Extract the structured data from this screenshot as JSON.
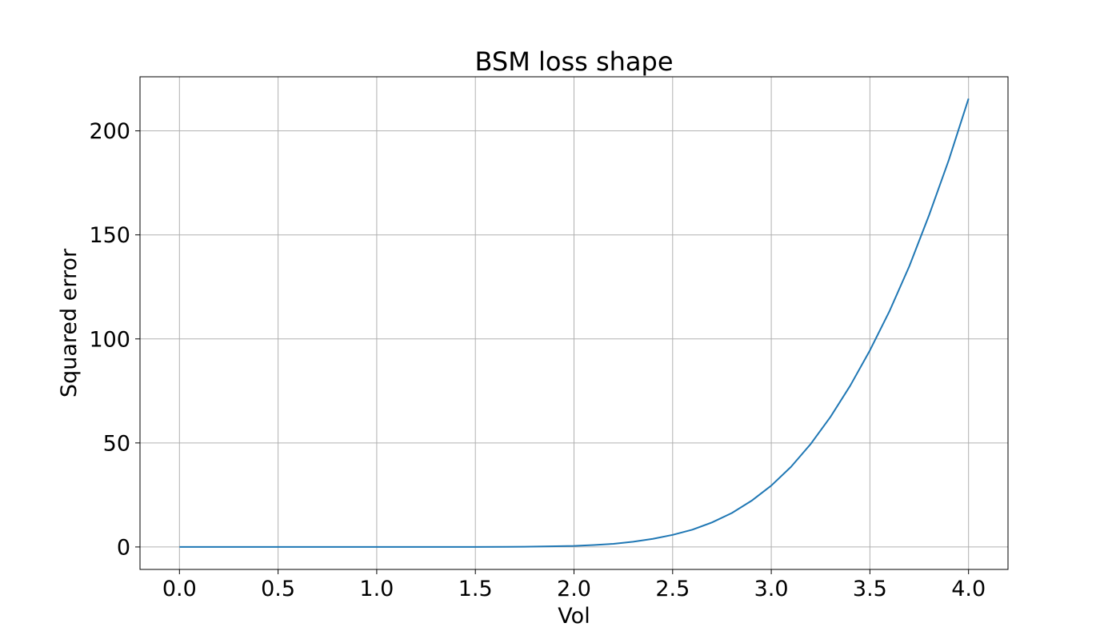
{
  "chart_data": {
    "type": "line",
    "title": "BSM loss shape",
    "xlabel": "Vol",
    "ylabel": "Squared error",
    "xlim": [
      -0.2,
      4.2
    ],
    "ylim": [
      -10.8,
      226.0
    ],
    "grid": true,
    "x_ticks": [
      0.0,
      0.5,
      1.0,
      1.5,
      2.0,
      2.5,
      3.0,
      3.5,
      4.0
    ],
    "x_tick_labels": [
      "0.0",
      "0.5",
      "1.0",
      "1.5",
      "2.0",
      "2.5",
      "3.0",
      "3.5",
      "4.0"
    ],
    "y_ticks": [
      0,
      50,
      100,
      150,
      200
    ],
    "y_tick_labels": [
      "0",
      "50",
      "100",
      "150",
      "200"
    ],
    "colors": {
      "series": "#1f77b4"
    },
    "series": [
      {
        "x": [
          0.0,
          0.25,
          0.5,
          0.75,
          1.0,
          1.25,
          1.5,
          1.75,
          2.0,
          2.1,
          2.2,
          2.3,
          2.4,
          2.5,
          2.6,
          2.7,
          2.8,
          2.9,
          3.0,
          3.1,
          3.2,
          3.3,
          3.4,
          3.5,
          3.6,
          3.7,
          3.8,
          3.9,
          4.0
        ],
        "values": [
          0.0,
          0.0,
          0.0,
          0.0,
          0.0,
          0.0,
          0.0,
          0.1,
          0.5,
          0.9,
          1.5,
          2.5,
          3.9,
          5.8,
          8.3,
          11.8,
          16.3,
          22.2,
          29.5,
          38.5,
          49.5,
          62.5,
          77.5,
          94.5,
          113.5,
          135.0,
          159.5,
          186.0,
          215.5
        ]
      }
    ]
  }
}
